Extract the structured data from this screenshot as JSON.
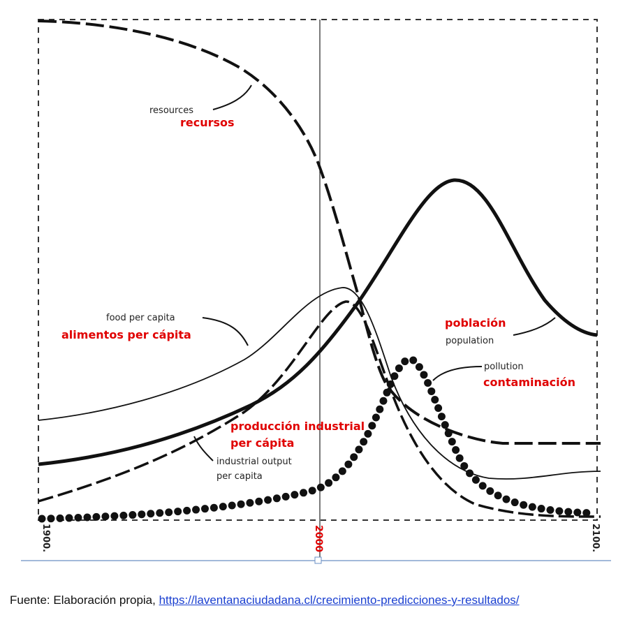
{
  "figure": {
    "labels": [
      "resources",
      "recursos",
      "food per capita",
      "alimentos per cápita",
      "población",
      "population",
      "pollution",
      "contaminación",
      "producción industrial",
      "per cápita",
      "industrial output",
      "per capita"
    ],
    "x_labels": [
      "1900.",
      "2000",
      "2100."
    ]
  },
  "caption": {
    "text": "Fuente: Elaboración propia, ",
    "link": "https://laventanaciudadana.cl/crecimiento-predicciones-y-resultados/"
  }
}
